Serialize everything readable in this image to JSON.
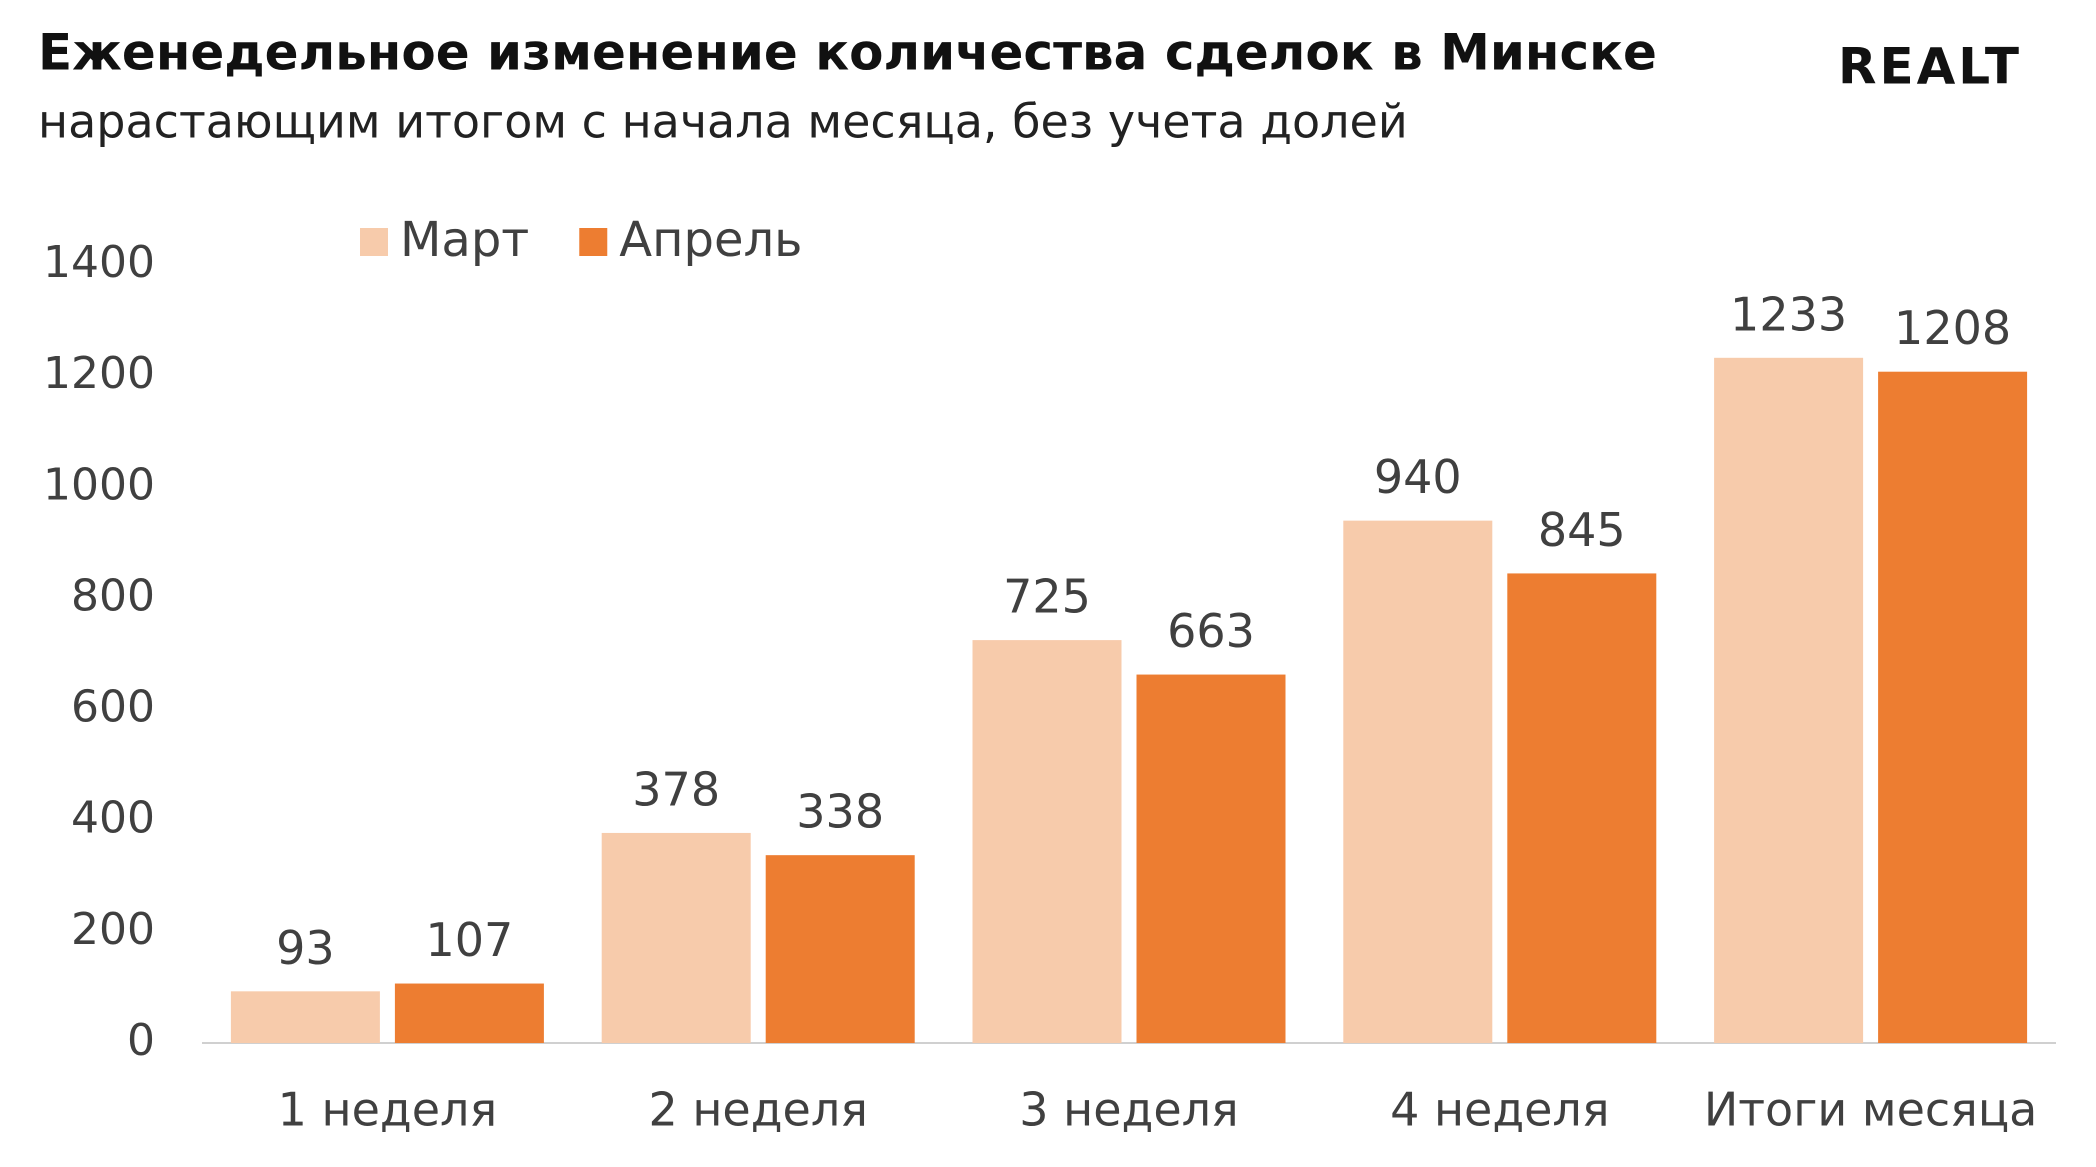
{
  "chart_data": {
    "type": "bar",
    "title": "Еженедельное изменение количества сделок в Минске",
    "subtitle": "нарастающим итогом с начала месяца, без учета долей",
    "logo": "REALT",
    "categories": [
      "1 неделя",
      "2 неделя",
      "3 неделя",
      "4 неделя",
      "Итоги месяца"
    ],
    "series": [
      {
        "name": "Март",
        "color": "#f7cbab",
        "values": [
          93,
          378,
          725,
          940,
          1233
        ]
      },
      {
        "name": "Апрель",
        "color": "#ed7d31",
        "values": [
          107,
          338,
          663,
          845,
          1208
        ]
      }
    ],
    "ylim": [
      0,
      1400
    ],
    "yticks": [
      0,
      200,
      400,
      600,
      800,
      1000,
      1200,
      1400
    ],
    "grid": false,
    "legend": "top-left"
  }
}
